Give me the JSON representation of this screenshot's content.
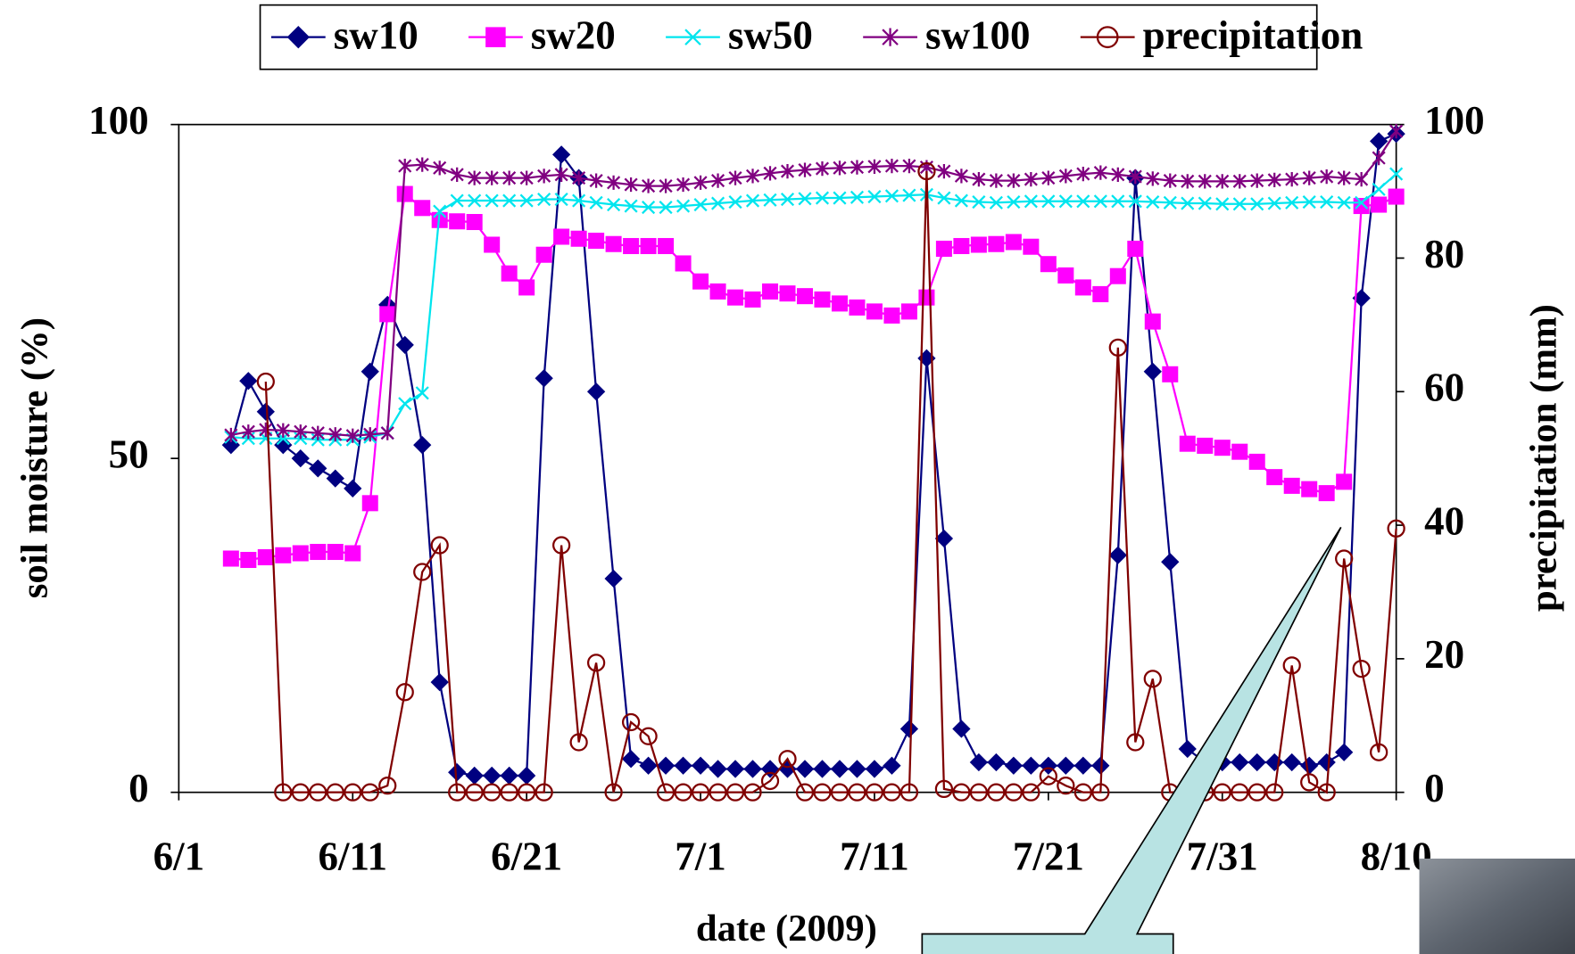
{
  "chart_data": {
    "type": "line",
    "x_label": "date (2009)",
    "y_label": "soil moisture (%)",
    "y2_label": "precipitation (mm)",
    "x": [
      "6/4",
      "6/5",
      "6/6",
      "6/7",
      "6/8",
      "6/9",
      "6/10",
      "6/11",
      "6/12",
      "6/13",
      "6/14",
      "6/15",
      "6/16",
      "6/17",
      "6/18",
      "6/19",
      "6/20",
      "6/21",
      "6/22",
      "6/23",
      "6/24",
      "6/25",
      "6/26",
      "6/27",
      "6/28",
      "6/29",
      "6/30",
      "7/1",
      "7/2",
      "7/3",
      "7/4",
      "7/5",
      "7/6",
      "7/7",
      "7/8",
      "7/9",
      "7/10",
      "7/11",
      "7/12",
      "7/13",
      "7/14",
      "7/15",
      "7/16",
      "7/17",
      "7/18",
      "7/19",
      "7/20",
      "7/21",
      "7/22",
      "7/23",
      "7/24",
      "7/25",
      "7/26",
      "7/27",
      "7/28",
      "7/29",
      "7/30",
      "7/31",
      "8/1",
      "8/2",
      "8/3",
      "8/4",
      "8/5",
      "8/6",
      "8/7",
      "8/8",
      "8/9",
      "8/10"
    ],
    "xlim": [
      "6/1",
      "8/10"
    ],
    "xticks": [
      "6/1",
      "6/11",
      "6/21",
      "7/1",
      "7/11",
      "7/21",
      "7/31",
      "8/10"
    ],
    "ylim": [
      0,
      100
    ],
    "yticks": [
      0,
      50,
      100
    ],
    "y2lim": [
      0,
      100
    ],
    "y2ticks": [
      0,
      20,
      40,
      60,
      80,
      100
    ],
    "grid": false,
    "legend": "top",
    "series": [
      {
        "name": "sw10",
        "color": "#000080",
        "marker": "diamond",
        "values": [
          52,
          61.6,
          57,
          52,
          50,
          48.5,
          47,
          45.5,
          63,
          73,
          67,
          52,
          16.5,
          3,
          2.5,
          2.5,
          2.5,
          2.5,
          62,
          95.5,
          92,
          60,
          32,
          5,
          4,
          4,
          4,
          4,
          3.5,
          3.5,
          3.5,
          3.5,
          3.5,
          3.5,
          3.5,
          3.5,
          3.5,
          3.5,
          4,
          9.5,
          65,
          38,
          9.5,
          4.5,
          4.5,
          4,
          4,
          4,
          4,
          4,
          4,
          35.5,
          92,
          63,
          34.5,
          6.5,
          4.5,
          4.5,
          4.5,
          4.5,
          4.5,
          4.5,
          4,
          4.5,
          6,
          74,
          97.5,
          98.6
        ]
      },
      {
        "name": "sw20",
        "color": "#ff00ff",
        "marker": "square",
        "values": [
          35,
          34.8,
          35.2,
          35.5,
          35.8,
          36,
          36,
          35.8,
          43.3,
          71.6,
          89.6,
          87.5,
          85.7,
          85.5,
          85.4,
          82,
          77.7,
          75.6,
          80.5,
          83.2,
          82.9,
          82.6,
          82.1,
          81.8,
          81.8,
          81.8,
          79.2,
          76.5,
          75,
          74.1,
          73.8,
          75,
          74.7,
          74.3,
          73.8,
          73.2,
          72.6,
          72,
          71.4,
          72,
          74.1,
          81.4,
          81.8,
          82,
          82.1,
          82.4,
          81.7,
          79.1,
          77.4,
          75.6,
          74.6,
          77.3,
          81.4,
          70.5,
          62.6,
          52.2,
          51.9,
          51.6,
          51,
          49.5,
          47.2,
          45.9,
          45.4,
          44.8,
          46.5,
          87.8,
          88,
          89.2
        ]
      },
      {
        "name": "sw50",
        "color": "#00e5ee",
        "marker": "x",
        "values": [
          53.2,
          53,
          53,
          53,
          53,
          52.8,
          52.8,
          52.8,
          53.2,
          53.8,
          58.2,
          59.8,
          87,
          88.6,
          88.6,
          88.6,
          88.6,
          88.6,
          88.8,
          88.8,
          88.6,
          88.3,
          88,
          87.8,
          87.6,
          87.6,
          87.8,
          88,
          88.2,
          88.4,
          88.6,
          88.7,
          88.8,
          88.9,
          89,
          89,
          89.1,
          89.2,
          89.3,
          89.4,
          89.5,
          89,
          88.6,
          88.4,
          88.3,
          88.4,
          88.5,
          88.5,
          88.5,
          88.5,
          88.5,
          88.5,
          88.5,
          88.4,
          88.3,
          88.2,
          88.2,
          88.1,
          88.1,
          88.1,
          88.2,
          88.3,
          88.4,
          88.4,
          88.3,
          88.3,
          90.3,
          92.6
        ]
      },
      {
        "name": "sw100",
        "color": "#800080",
        "marker": "star",
        "values": [
          53.5,
          54,
          54.3,
          54.2,
          54,
          53.8,
          53.6,
          53.4,
          53.6,
          53.8,
          93.8,
          94,
          93.5,
          92.5,
          92,
          92,
          92,
          92,
          92.3,
          92.5,
          92,
          91.6,
          91.3,
          91,
          90.8,
          90.8,
          91,
          91.3,
          91.6,
          92,
          92.3,
          92.7,
          93,
          93.2,
          93.4,
          93.5,
          93.6,
          93.7,
          93.8,
          93.8,
          93.6,
          93,
          92.3,
          91.8,
          91.6,
          91.6,
          91.8,
          92,
          92.3,
          92.6,
          92.8,
          92.5,
          92.2,
          91.9,
          91.6,
          91.5,
          91.5,
          91.5,
          91.5,
          91.6,
          91.7,
          91.8,
          92,
          92.2,
          92,
          91.8,
          95,
          99
        ]
      },
      {
        "name": "precipitation",
        "color": "#800000",
        "marker": "circle",
        "axis": "y2",
        "values": [
          null,
          null,
          61.5,
          0,
          0,
          0,
          0,
          0,
          0,
          1,
          15,
          33,
          37,
          0,
          0,
          0,
          0,
          0,
          0,
          37,
          7.5,
          19.4,
          0,
          10.5,
          8.4,
          0,
          0,
          0,
          0,
          0,
          0,
          1.7,
          5,
          0,
          0,
          0,
          0,
          0,
          0,
          0,
          93,
          0.5,
          0,
          0,
          0,
          0,
          0,
          2.4,
          1,
          0,
          0,
          66.6,
          7.5,
          17,
          0,
          0,
          0,
          0,
          0,
          0,
          0,
          19,
          1.5,
          0,
          35,
          18.5,
          6,
          39.5
        ]
      }
    ]
  }
}
